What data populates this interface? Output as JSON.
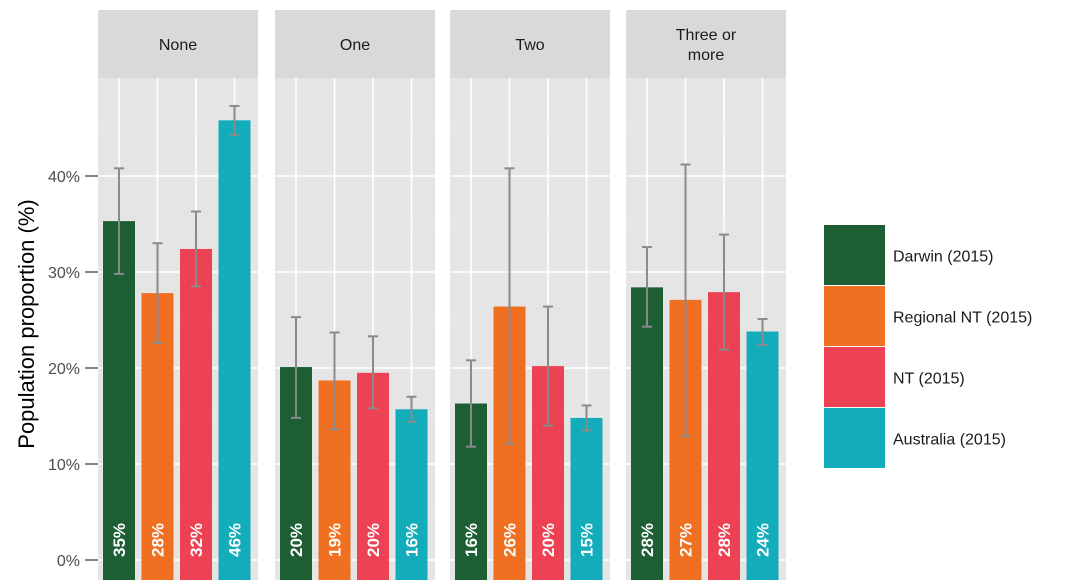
{
  "chart_data": {
    "type": "bar",
    "ylabel": "Population proportion (%)",
    "y_ticks": [
      "0%",
      "10%",
      "20%",
      "30%",
      "40%"
    ],
    "ylim": [
      0,
      48.5
    ],
    "facets": [
      "None",
      "One",
      "Two",
      "Three or more"
    ],
    "facet_display": [
      [
        "None"
      ],
      [
        "One"
      ],
      [
        "Two"
      ],
      [
        "Three or",
        "more"
      ]
    ],
    "series": [
      {
        "name": "Darwin (2015)",
        "color": "#1d5e34",
        "values": [
          35.3,
          20.1,
          16.3,
          28.4
        ],
        "labels": [
          "35%",
          "20%",
          "16%",
          "28%"
        ],
        "ci_low": [
          29.8,
          14.8,
          11.8,
          24.3
        ],
        "ci_high": [
          40.8,
          25.3,
          20.8,
          32.6
        ]
      },
      {
        "name": "Regional NT (2015)",
        "color": "#f07021",
        "values": [
          27.8,
          18.7,
          26.4,
          27.1
        ],
        "labels": [
          "28%",
          "19%",
          "26%",
          "27%"
        ],
        "ci_low": [
          22.6,
          13.6,
          12.1,
          12.9
        ],
        "ci_high": [
          33.0,
          23.7,
          40.8,
          41.2
        ]
      },
      {
        "name": "NT (2015)",
        "color": "#ed4253",
        "values": [
          32.4,
          19.5,
          20.2,
          27.9
        ],
        "labels": [
          "32%",
          "20%",
          "20%",
          "28%"
        ],
        "ci_low": [
          28.5,
          15.8,
          14.0,
          21.9
        ],
        "ci_high": [
          36.3,
          23.3,
          26.4,
          33.9
        ]
      },
      {
        "name": "Australia (2015)",
        "color": "#12acba",
        "values": [
          45.8,
          15.7,
          14.8,
          23.8
        ],
        "labels": [
          "46%",
          "16%",
          "15%",
          "24%"
        ],
        "ci_low": [
          44.3,
          14.4,
          13.5,
          22.4
        ],
        "ci_high": [
          47.3,
          17.0,
          16.1,
          25.1
        ]
      }
    ],
    "grid": true,
    "legend_position": "right"
  }
}
